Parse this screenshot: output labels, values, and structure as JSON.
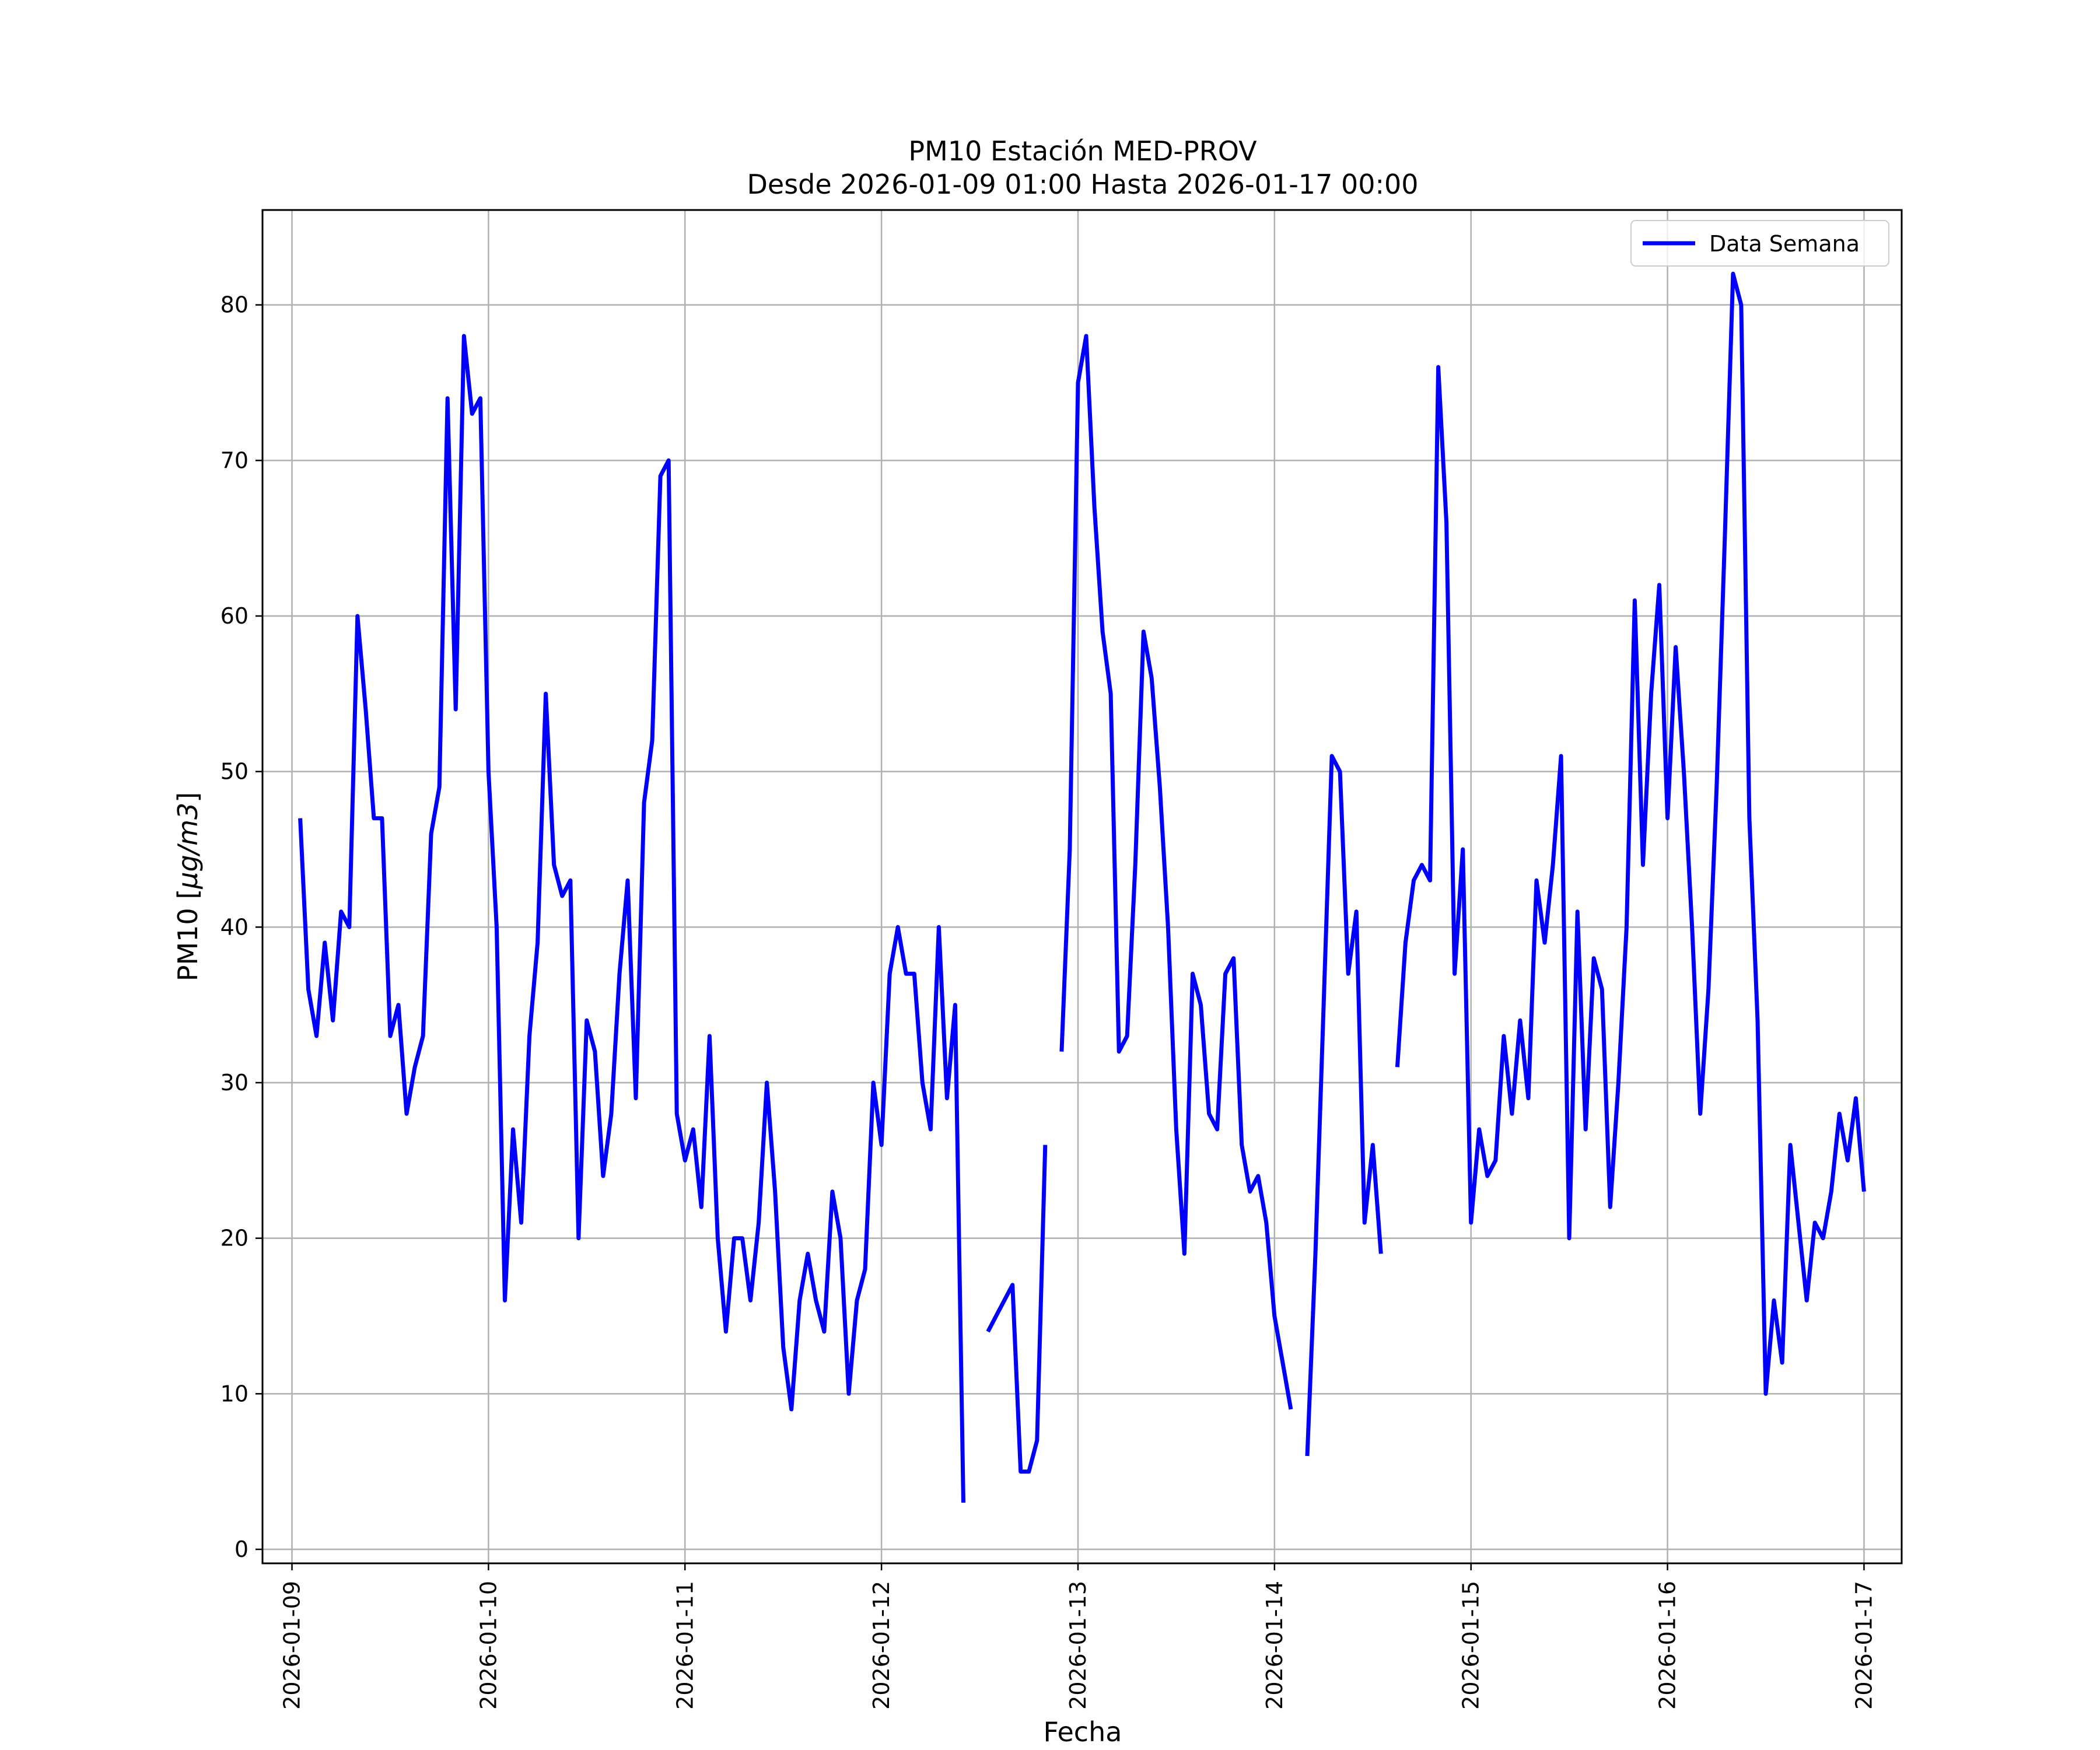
{
  "chart_data": {
    "type": "line",
    "title": "PM10 Estación MED-PROV",
    "subtitle": "Desde 2026-01-09 01:00 Hasta 2026-01-17 00:00",
    "xlabel": "Fecha",
    "ylabel": "PM10 [μg/m3]",
    "ylabel_parts": {
      "prefix": "PM10 [",
      "italic": "μg/m3",
      "suffix": "]"
    },
    "xlim": [
      "2026-01-08 20:24",
      "2026-01-17 04:36"
    ],
    "ylim": [
      -0.9,
      86.1
    ],
    "x_ticks": [
      "2026-01-09",
      "2026-01-10",
      "2026-01-11",
      "2026-01-12",
      "2026-01-13",
      "2026-01-14",
      "2026-01-15",
      "2026-01-16",
      "2026-01-17"
    ],
    "y_ticks": [
      0,
      10,
      20,
      30,
      40,
      50,
      60,
      70,
      80
    ],
    "grid": true,
    "legend_position": "top-right",
    "colors": {
      "series": "#0000ff",
      "grid": "#b0b0b0",
      "axes": "#000000"
    },
    "series": [
      {
        "name": "Data Semana",
        "start": "2026-01-09 01:00",
        "step_hours": 1,
        "values": [
          47,
          36,
          33,
          39,
          34,
          41,
          40,
          60,
          54,
          47,
          47,
          33,
          35,
          28,
          31,
          33,
          46,
          49,
          74,
          54,
          78,
          73,
          74,
          50,
          40,
          16,
          27,
          21,
          33,
          39,
          55,
          44,
          42,
          43,
          20,
          34,
          32,
          24,
          28,
          37,
          43,
          29,
          48,
          52,
          69,
          70,
          28,
          25,
          27,
          22,
          33,
          20,
          14,
          20,
          20,
          16,
          21,
          30,
          23,
          13,
          9,
          16,
          19,
          16,
          14,
          23,
          20,
          10,
          16,
          18,
          30,
          26,
          37,
          40,
          37,
          37,
          30,
          27,
          40,
          29,
          35,
          3,
          null,
          null,
          14,
          15,
          16,
          17,
          5,
          5,
          7,
          26,
          null,
          32,
          45,
          75,
          78,
          67,
          59,
          55,
          32,
          33,
          44,
          59,
          56,
          49,
          40,
          27,
          19,
          37,
          35,
          28,
          27,
          37,
          38,
          26,
          23,
          24,
          21,
          15,
          12,
          9,
          null,
          6,
          19,
          35,
          51,
          50,
          37,
          41,
          21,
          26,
          19,
          null,
          31,
          39,
          43,
          44,
          43,
          76,
          66,
          37,
          45,
          21,
          27,
          24,
          25,
          33,
          28,
          34,
          29,
          43,
          39,
          44,
          51,
          20,
          41,
          27,
          38,
          36,
          22,
          30,
          40,
          61,
          44,
          55,
          62,
          47,
          58,
          50,
          40,
          28,
          36,
          49,
          65,
          82,
          80,
          47,
          34,
          10,
          16,
          12,
          26,
          21,
          16,
          21,
          20,
          23,
          28,
          25,
          29,
          23
        ]
      }
    ]
  }
}
